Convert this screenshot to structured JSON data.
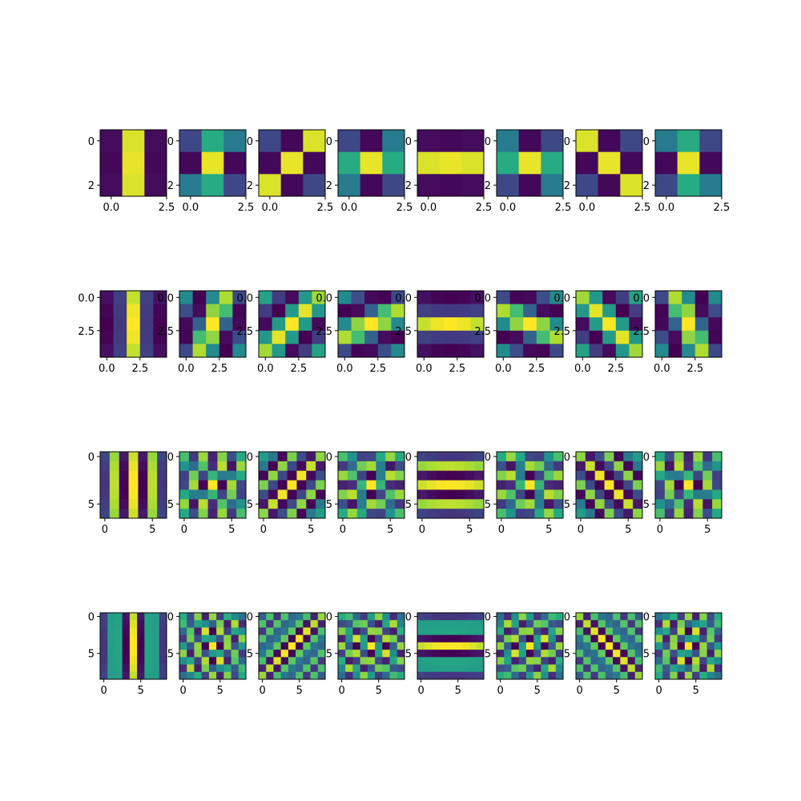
{
  "figure": {
    "type": "heatmap",
    "colormap": "viridis",
    "rows": 4,
    "columns": 8,
    "background": "#ffffff"
  },
  "chart_data": [
    {
      "type": "heatmap",
      "kernel_size": 3,
      "xticks": [
        "0.0",
        "2.5"
      ],
      "yticks": [
        "0",
        "2"
      ],
      "xtick_values": [
        0,
        2.5
      ],
      "ytick_values": [
        0,
        2
      ],
      "panels": [
        {
          "pattern": "vertical",
          "values": [
            [
              0.03,
              0.95,
              0.03
            ],
            [
              0.02,
              0.97,
              0.02
            ],
            [
              0.03,
              0.95,
              0.03
            ]
          ]
        },
        {
          "pattern": "diagonal",
          "values": [
            [
              0.22,
              0.62,
              0.42
            ],
            [
              0.02,
              0.97,
              0.02
            ],
            [
              0.42,
              0.62,
              0.22
            ]
          ]
        },
        {
          "pattern": "diagonal",
          "values": [
            [
              0.22,
              0.02,
              0.95
            ],
            [
              0.02,
              0.97,
              0.02
            ],
            [
              0.95,
              0.02,
              0.22
            ]
          ]
        },
        {
          "pattern": "diagonal",
          "values": [
            [
              0.22,
              0.02,
              0.42
            ],
            [
              0.62,
              0.97,
              0.62
            ],
            [
              0.42,
              0.02,
              0.22
            ]
          ]
        },
        {
          "pattern": "horizontal",
          "values": [
            [
              0.03,
              0.02,
              0.03
            ],
            [
              0.95,
              0.97,
              0.95
            ],
            [
              0.03,
              0.02,
              0.03
            ]
          ]
        },
        {
          "pattern": "diagonal",
          "values": [
            [
              0.42,
              0.02,
              0.22
            ],
            [
              0.62,
              0.97,
              0.62
            ],
            [
              0.22,
              0.02,
              0.42
            ]
          ]
        },
        {
          "pattern": "diagonal",
          "values": [
            [
              0.95,
              0.02,
              0.22
            ],
            [
              0.02,
              0.97,
              0.02
            ],
            [
              0.22,
              0.02,
              0.95
            ]
          ]
        },
        {
          "pattern": "diagonal",
          "values": [
            [
              0.42,
              0.62,
              0.22
            ],
            [
              0.02,
              0.97,
              0.02
            ],
            [
              0.22,
              0.62,
              0.42
            ]
          ]
        }
      ]
    },
    {
      "type": "heatmap",
      "kernel_size": 5,
      "xticks": [
        "0.0",
        "2.5"
      ],
      "yticks": [
        "0.0",
        "2.5"
      ],
      "xtick_values": [
        0,
        2.5
      ],
      "ytick_values": [
        0,
        2.5
      ],
      "angles_deg": [
        0,
        22.5,
        45,
        67.5,
        90,
        112.5,
        135,
        157.5
      ],
      "frequency": 0.3
    },
    {
      "type": "heatmap",
      "kernel_size": 7,
      "xticks": [
        "0",
        "5"
      ],
      "yticks": [
        "0",
        "5"
      ],
      "xtick_values": [
        0,
        5
      ],
      "ytick_values": [
        0,
        5
      ],
      "angles_deg": [
        0,
        22.5,
        45,
        67.5,
        90,
        112.5,
        135,
        157.5
      ],
      "frequency": 0.5
    },
    {
      "type": "heatmap",
      "kernel_size": 9,
      "xticks": [
        "0",
        "5"
      ],
      "yticks": [
        "0",
        "5"
      ],
      "xtick_values": [
        0,
        5
      ],
      "ytick_values": [
        0,
        5
      ],
      "angles_deg": [
        0,
        22.5,
        45,
        67.5,
        90,
        112.5,
        135,
        157.5
      ],
      "frequency": 0.6
    }
  ]
}
